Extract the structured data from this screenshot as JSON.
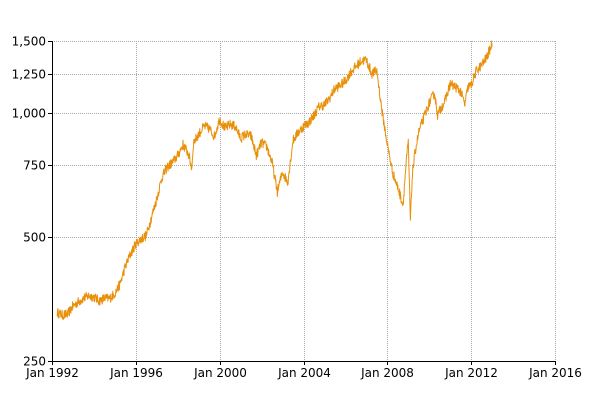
{
  "chart_data": {
    "type": "line",
    "title": "",
    "xlabel": "",
    "ylabel": "",
    "y_scale": "log",
    "grid": true,
    "legend": "none",
    "xlim": [
      1992.0,
      2016.0
    ],
    "ylim": [
      250,
      1500
    ],
    "x_ticks": [
      {
        "value": 1992,
        "label": "Jan 1992"
      },
      {
        "value": 1996,
        "label": "Jan 1996"
      },
      {
        "value": 2000,
        "label": "Jan 2000"
      },
      {
        "value": 2004,
        "label": "Jan 2004"
      },
      {
        "value": 2008,
        "label": "Jan 2008"
      },
      {
        "value": 2012,
        "label": "Jan 2012"
      },
      {
        "value": 2016,
        "label": "Jan 2016"
      }
    ],
    "y_ticks": [
      {
        "value": 250,
        "label": "250"
      },
      {
        "value": 500,
        "label": "500"
      },
      {
        "value": 750,
        "label": "750"
      },
      {
        "value": 1000,
        "label": "1,000"
      },
      {
        "value": 1250,
        "label": "1,250"
      },
      {
        "value": 1500,
        "label": "1,500"
      }
    ],
    "series": [
      {
        "color": "#e8900a",
        "x": [
          1992.25,
          1992.5,
          1992.75,
          1993.0,
          1993.25,
          1993.5,
          1993.75,
          1994.0,
          1994.25,
          1994.5,
          1994.75,
          1995.0,
          1995.25,
          1995.5,
          1995.75,
          1996.0,
          1996.25,
          1996.5,
          1996.75,
          1997.0,
          1997.25,
          1997.5,
          1997.75,
          1998.0,
          1998.25,
          1998.5,
          1998.67,
          1998.75,
          1999.0,
          1999.25,
          1999.5,
          1999.75,
          2000.0,
          2000.25,
          2000.5,
          2000.75,
          2001.0,
          2001.25,
          2001.5,
          2001.75,
          2002.0,
          2002.25,
          2002.5,
          2002.75,
          2003.0,
          2003.25,
          2003.5,
          2003.75,
          2004.0,
          2004.25,
          2004.5,
          2004.75,
          2005.0,
          2005.25,
          2005.5,
          2005.75,
          2006.0,
          2006.25,
          2006.5,
          2006.75,
          2007.0,
          2007.25,
          2007.5,
          2007.75,
          2008.0,
          2008.25,
          2008.5,
          2008.75,
          2008.9,
          2009.0,
          2009.1,
          2009.2,
          2009.35,
          2009.5,
          2009.75,
          2010.0,
          2010.25,
          2010.4,
          2010.6,
          2010.75,
          2011.0,
          2011.25,
          2011.5,
          2011.7,
          2011.85,
          2012.0,
          2012.25,
          2012.5,
          2012.75,
          2013.0
        ],
        "values": [
          328,
          323,
          325,
          340,
          348,
          355,
          360,
          358,
          350,
          355,
          355,
          365,
          385,
          425,
          455,
          482,
          495,
          505,
          560,
          620,
          700,
          740,
          760,
          790,
          840,
          800,
          735,
          850,
          890,
          930,
          920,
          880,
          970,
          920,
          940,
          930,
          870,
          890,
          880,
          790,
          850,
          830,
          760,
          645,
          720,
          680,
          860,
          900,
          930,
          950,
          990,
          1040,
          1050,
          1090,
          1150,
          1170,
          1200,
          1260,
          1300,
          1340,
          1350,
          1250,
          1270,
          1010,
          840,
          720,
          660,
          600,
          760,
          850,
          550,
          720,
          820,
          900,
          980,
          1060,
          1120,
          990,
          1040,
          1070,
          1180,
          1160,
          1130,
          1050,
          1160,
          1170,
          1270,
          1310,
          1370,
          1480
        ]
      }
    ]
  }
}
